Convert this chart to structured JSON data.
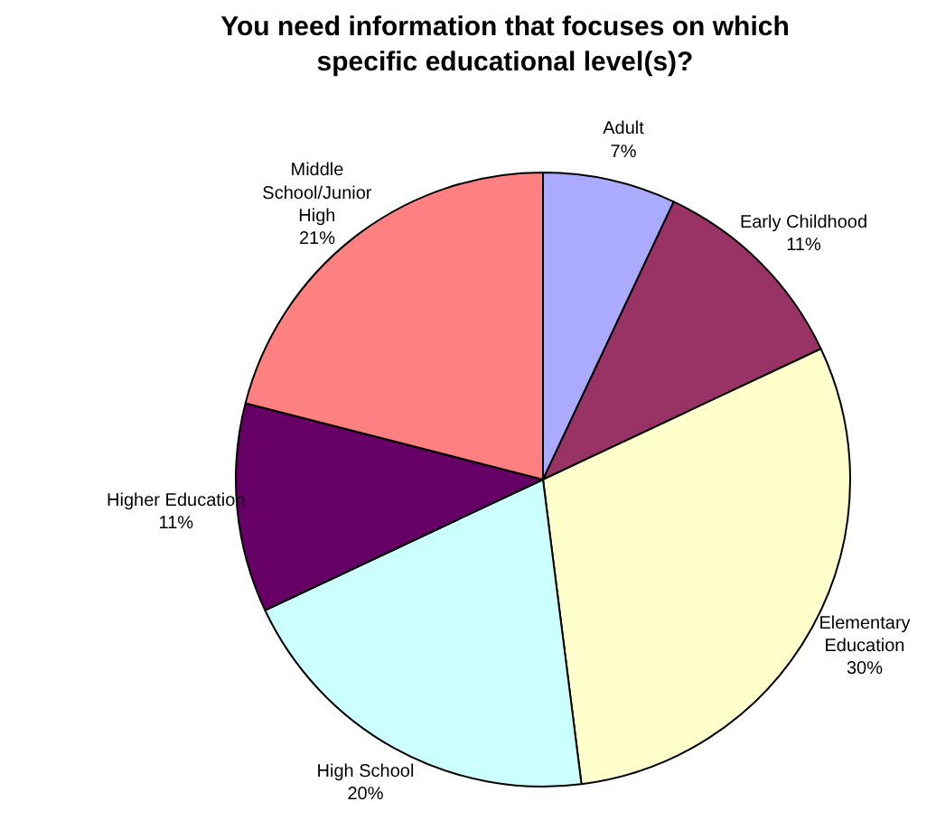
{
  "chart_data": {
    "type": "pie",
    "title": "You need information that focuses on which specific educational level(s)?",
    "categories": [
      "Adult",
      "Early Childhood",
      "Elementary Education",
      "High School",
      "Higher Education",
      "Middle School/Junior High"
    ],
    "values": [
      7,
      11,
      30,
      20,
      11,
      21
    ],
    "colors": [
      "#aaaaff",
      "#993366",
      "#ffffcc",
      "#ccffff",
      "#660066",
      "#ff8080"
    ],
    "value_labels": [
      "7%",
      "11%",
      "30%",
      "20%",
      "11%",
      "21%"
    ]
  }
}
